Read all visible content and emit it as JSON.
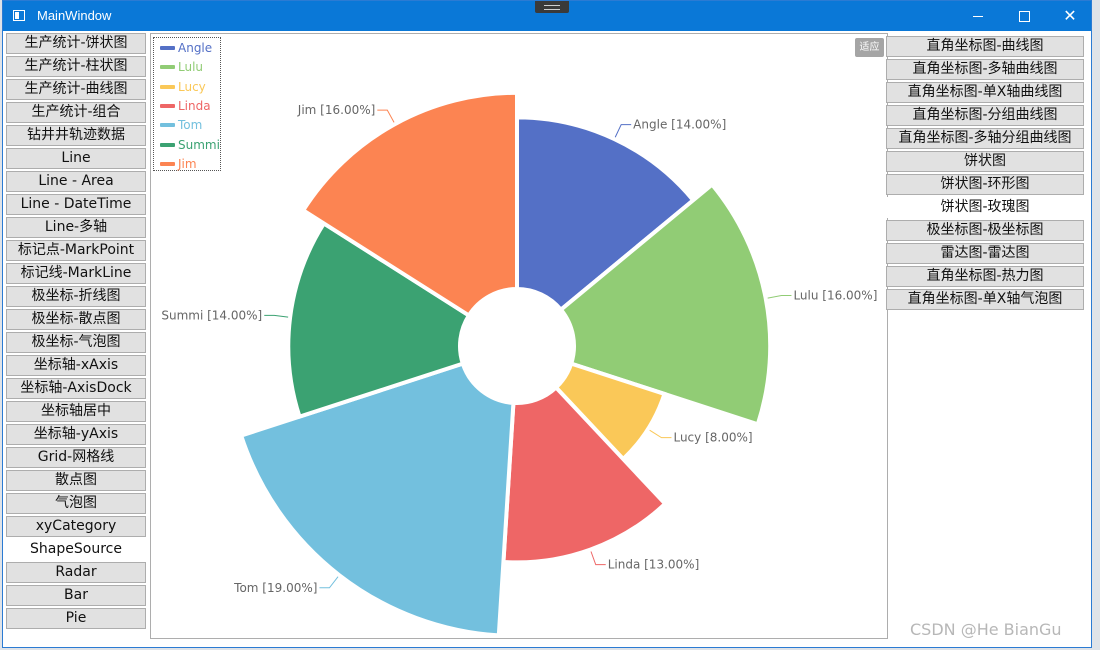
{
  "window": {
    "title": "MainWindow",
    "fit_button": "适应",
    "watermark": "CSDN @He BianGu"
  },
  "left_nav": [
    "生产统计-饼状图",
    "生产统计-柱状图",
    "生产统计-曲线图",
    "生产统计-组合",
    "钻井井轨迹数据",
    "Line",
    "Line - Area",
    "Line - DateTime",
    "Line-多轴",
    "标记点-MarkPoint",
    "标记线-MarkLine",
    "极坐标-折线图",
    "极坐标-散点图",
    "极坐标-气泡图",
    "坐标轴-xAxis",
    "坐标轴-AxisDock",
    "坐标轴居中",
    "坐标轴-yAxis",
    "Grid-网格线",
    "散点图",
    "气泡图",
    "xyCategory",
    "ShapeSource",
    "Radar",
    "Bar",
    "Pie"
  ],
  "left_nav_selected": "ShapeSource",
  "right_nav": [
    "直角坐标图-曲线图",
    "直角坐标图-多轴曲线图",
    "直角坐标图-单X轴曲线图",
    "直角坐标图-分组曲线图",
    "直角坐标图-多轴分组曲线图",
    "饼状图",
    "饼状图-环形图",
    "饼状图-玫瑰图",
    "极坐标图-极坐标图",
    "雷达图-雷达图",
    "直角坐标图-热力图",
    "直角坐标图-单X轴气泡图"
  ],
  "right_nav_selected": "饼状图-玫瑰图",
  "chart_data": {
    "type": "pie",
    "variant": "rose",
    "series": [
      {
        "name": "Angle",
        "value": 14,
        "label": "Angle [14.00%]",
        "color": "#5470c6"
      },
      {
        "name": "Lulu",
        "value": 16,
        "label": "Lulu [16.00%]",
        "color": "#91cc75"
      },
      {
        "name": "Lucy",
        "value": 8,
        "label": "Lucy [8.00%]",
        "color": "#fac858"
      },
      {
        "name": "Linda",
        "value": 13,
        "label": "Linda [13.00%]",
        "color": "#ee6666"
      },
      {
        "name": "Tom",
        "value": 19,
        "label": "Tom [19.00%]",
        "color": "#73c0de"
      },
      {
        "name": "Summi",
        "value": 14,
        "label": "Summi [14.00%]",
        "color": "#3ba272"
      },
      {
        "name": "Jim",
        "value": 16,
        "label": "Jim [16.00%]",
        "color": "#fc8452"
      }
    ],
    "legend_position": "top-left"
  }
}
